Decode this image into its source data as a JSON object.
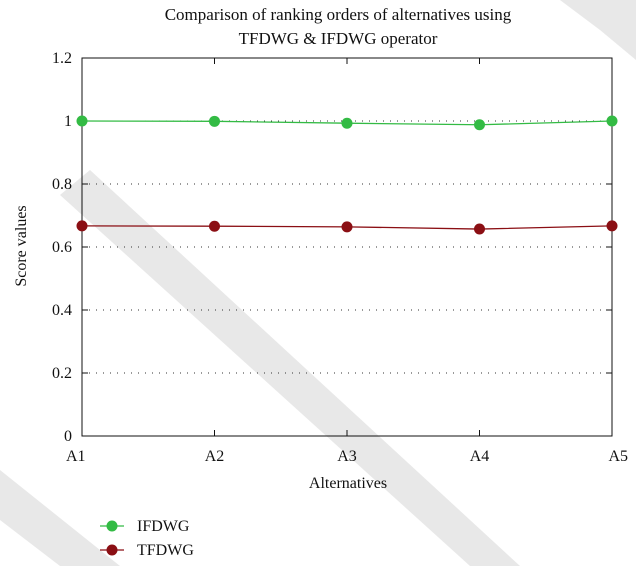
{
  "chart_data": {
    "type": "line",
    "title_lines": [
      "Comparison of ranking orders of alternatives using",
      "TFDWG & IFDWG operator"
    ],
    "xlabel": "Alternatives",
    "ylabel": "Score values",
    "categories": [
      "A1",
      "A2",
      "A3",
      "A4",
      "A5"
    ],
    "ylim": [
      0,
      1.2
    ],
    "yticks": [
      0,
      0.2,
      0.4,
      0.6,
      0.8,
      1,
      1.2
    ],
    "ytick_labels": [
      "0",
      "0.2",
      "0.4",
      "0.6",
      "0.8",
      "1",
      "1.2"
    ],
    "grid": "dotted horizontal",
    "legend_position": "bottom-left",
    "series": [
      {
        "name": "IFDWG",
        "color": "#33bb44",
        "values": [
          1.0,
          0.999,
          0.993,
          0.988,
          1.0
        ]
      },
      {
        "name": "TFDWG",
        "color": "#8b0f14",
        "values": [
          0.667,
          0.666,
          0.664,
          0.657,
          0.667
        ]
      }
    ]
  }
}
